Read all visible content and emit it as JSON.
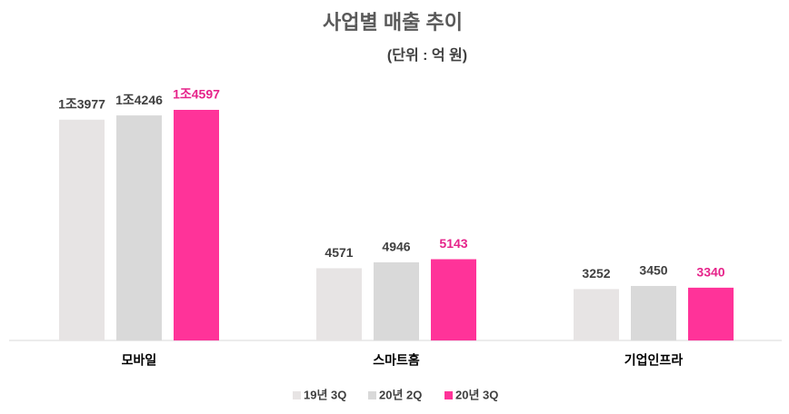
{
  "chart_data": {
    "type": "bar",
    "title": "사업별 매출 추이",
    "subtitle": "(단위 : 억 원)",
    "categories": [
      "모바일",
      "스마트홈",
      "기업인프라"
    ],
    "series": [
      {
        "name": "19년 3Q",
        "color": "#e7e4e4",
        "label_color": "#404040",
        "values": [
          13977,
          4571,
          3252
        ],
        "value_labels": [
          "1조3977",
          "4571",
          "3252"
        ]
      },
      {
        "name": "20년 2Q",
        "color": "#d9d9d9",
        "label_color": "#404040",
        "values": [
          14246,
          4946,
          3450
        ],
        "value_labels": [
          "1조4246",
          "4946",
          "3450"
        ]
      },
      {
        "name": "20년 3Q",
        "color": "#ff3399",
        "label_color": "#e6238a",
        "values": [
          14597,
          5143,
          3340
        ],
        "value_labels": [
          "1조4597",
          "5143",
          "3340"
        ]
      }
    ],
    "legend": "bottom"
  }
}
